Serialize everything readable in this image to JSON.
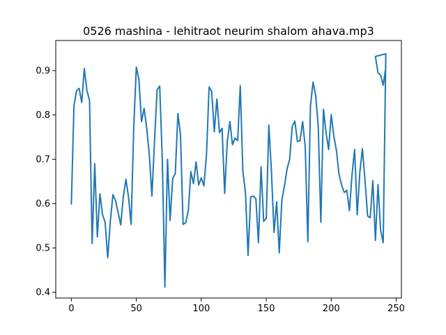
{
  "chart_data": {
    "type": "line",
    "title": "0526 mashina - lehitraot neurim shalom ahava.mp3",
    "xlabel": "",
    "ylabel": "",
    "xlim": [
      -12,
      254
    ],
    "ylim": [
      0.387,
      0.968
    ],
    "xticks": [
      0,
      50,
      100,
      150,
      200,
      250
    ],
    "xtick_labels": [
      "0",
      "50",
      "100",
      "150",
      "200",
      "250"
    ],
    "yticks": [
      0.4,
      0.5,
      0.6,
      0.7,
      0.8,
      0.9
    ],
    "ytick_labels": [
      "0.4",
      "0.5",
      "0.6",
      "0.7",
      "0.8",
      "0.9"
    ],
    "grid": false,
    "legend": "none",
    "color": "#1f77b4",
    "series": [
      {
        "x": [
          0,
          2,
          4,
          6,
          8,
          10,
          12,
          14,
          16,
          18,
          20,
          22,
          24,
          26,
          28,
          30,
          32,
          34,
          36,
          38,
          40,
          42,
          44,
          46,
          48,
          50,
          52,
          54,
          56,
          58,
          60,
          62,
          64,
          66,
          68,
          70,
          72,
          74,
          76,
          78,
          80,
          82,
          84,
          86,
          88,
          90,
          92,
          94,
          96,
          98,
          100,
          102,
          104,
          106,
          108,
          110,
          112,
          114,
          116,
          118,
          120,
          122,
          124,
          126,
          128,
          130,
          132,
          134,
          136,
          138,
          140,
          142,
          144,
          146,
          148,
          150,
          152,
          154,
          156,
          158,
          160,
          162,
          164,
          166,
          168,
          170,
          172,
          174,
          176,
          178,
          180,
          182,
          184,
          186,
          188,
          190,
          192,
          194,
          196,
          198,
          200,
          202,
          204,
          206,
          208,
          210,
          212,
          214,
          216,
          218,
          220,
          222,
          224,
          226,
          228,
          230,
          232,
          234,
          236,
          238,
          240,
          242
        ],
        "y": [
          0.599,
          0.82,
          0.855,
          0.86,
          0.828,
          0.905,
          0.855,
          0.833,
          0.51,
          0.69,
          0.525,
          0.622,
          0.575,
          0.558,
          0.478,
          0.56,
          0.62,
          0.607,
          0.58,
          0.552,
          0.615,
          0.655,
          0.615,
          0.553,
          0.77,
          0.908,
          0.88,
          0.785,
          0.815,
          0.77,
          0.71,
          0.617,
          0.74,
          0.857,
          0.865,
          0.7,
          0.412,
          0.7,
          0.562,
          0.657,
          0.668,
          0.803,
          0.755,
          0.553,
          0.557,
          0.584,
          0.672,
          0.645,
          0.694,
          0.642,
          0.658,
          0.64,
          0.71,
          0.863,
          0.853,
          0.762,
          0.836,
          0.76,
          0.77,
          0.623,
          0.74,
          0.785,
          0.733,
          0.748,
          0.742,
          0.866,
          0.673,
          0.625,
          0.483,
          0.615,
          0.617,
          0.611,
          0.512,
          0.683,
          0.56,
          0.567,
          0.777,
          0.672,
          0.535,
          0.604,
          0.489,
          0.608,
          0.64,
          0.678,
          0.7,
          0.774,
          0.786,
          0.74,
          0.742,
          0.785,
          0.728,
          0.514,
          0.82,
          0.874,
          0.845,
          0.775,
          0.558,
          0.813,
          0.76,
          0.722,
          0.801,
          0.752,
          0.72,
          0.666,
          0.642,
          0.625,
          0.63,
          0.584,
          0.665,
          0.722,
          0.575,
          0.67,
          0.724,
          0.652,
          0.572,
          0.568,
          0.652,
          0.517,
          0.643,
          0.54,
          0.512,
          0.938
        ]
      }
    ],
    "tail_points": {
      "x": [
        234,
        236,
        238,
        240,
        242
      ],
      "y": [
        0.932,
        0.895,
        0.89,
        0.867,
        0.908
      ]
    }
  }
}
